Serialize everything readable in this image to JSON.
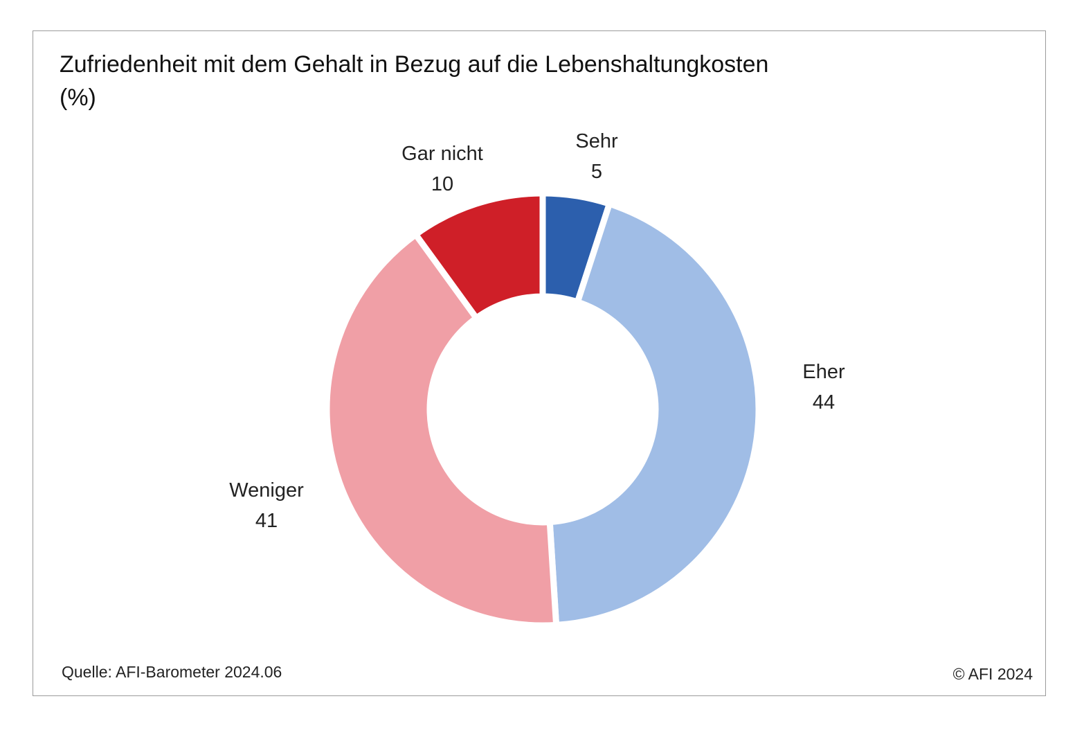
{
  "chart_data": {
    "type": "pie",
    "donut": true,
    "title": "Zufriedenheit mit dem Gehalt in Bezug auf die Lebenshaltungkosten",
    "subtitle": "(%)",
    "slices": [
      {
        "label": "Sehr",
        "value": 5,
        "value_text": "5",
        "color": "#2c5fad"
      },
      {
        "label": "Eher",
        "value": 44,
        "value_text": "44",
        "color": "#a0bde6"
      },
      {
        "label": "Weniger",
        "value": 41,
        "value_text": "41",
        "color": "#f09fa6"
      },
      {
        "label": "Gar nicht",
        "value": 10,
        "value_text": "10",
        "color": "#cf1f28"
      }
    ]
  },
  "footer": {
    "source": "Quelle: AFI-Barometer 2024.06",
    "copyright": "© AFI 2024"
  }
}
